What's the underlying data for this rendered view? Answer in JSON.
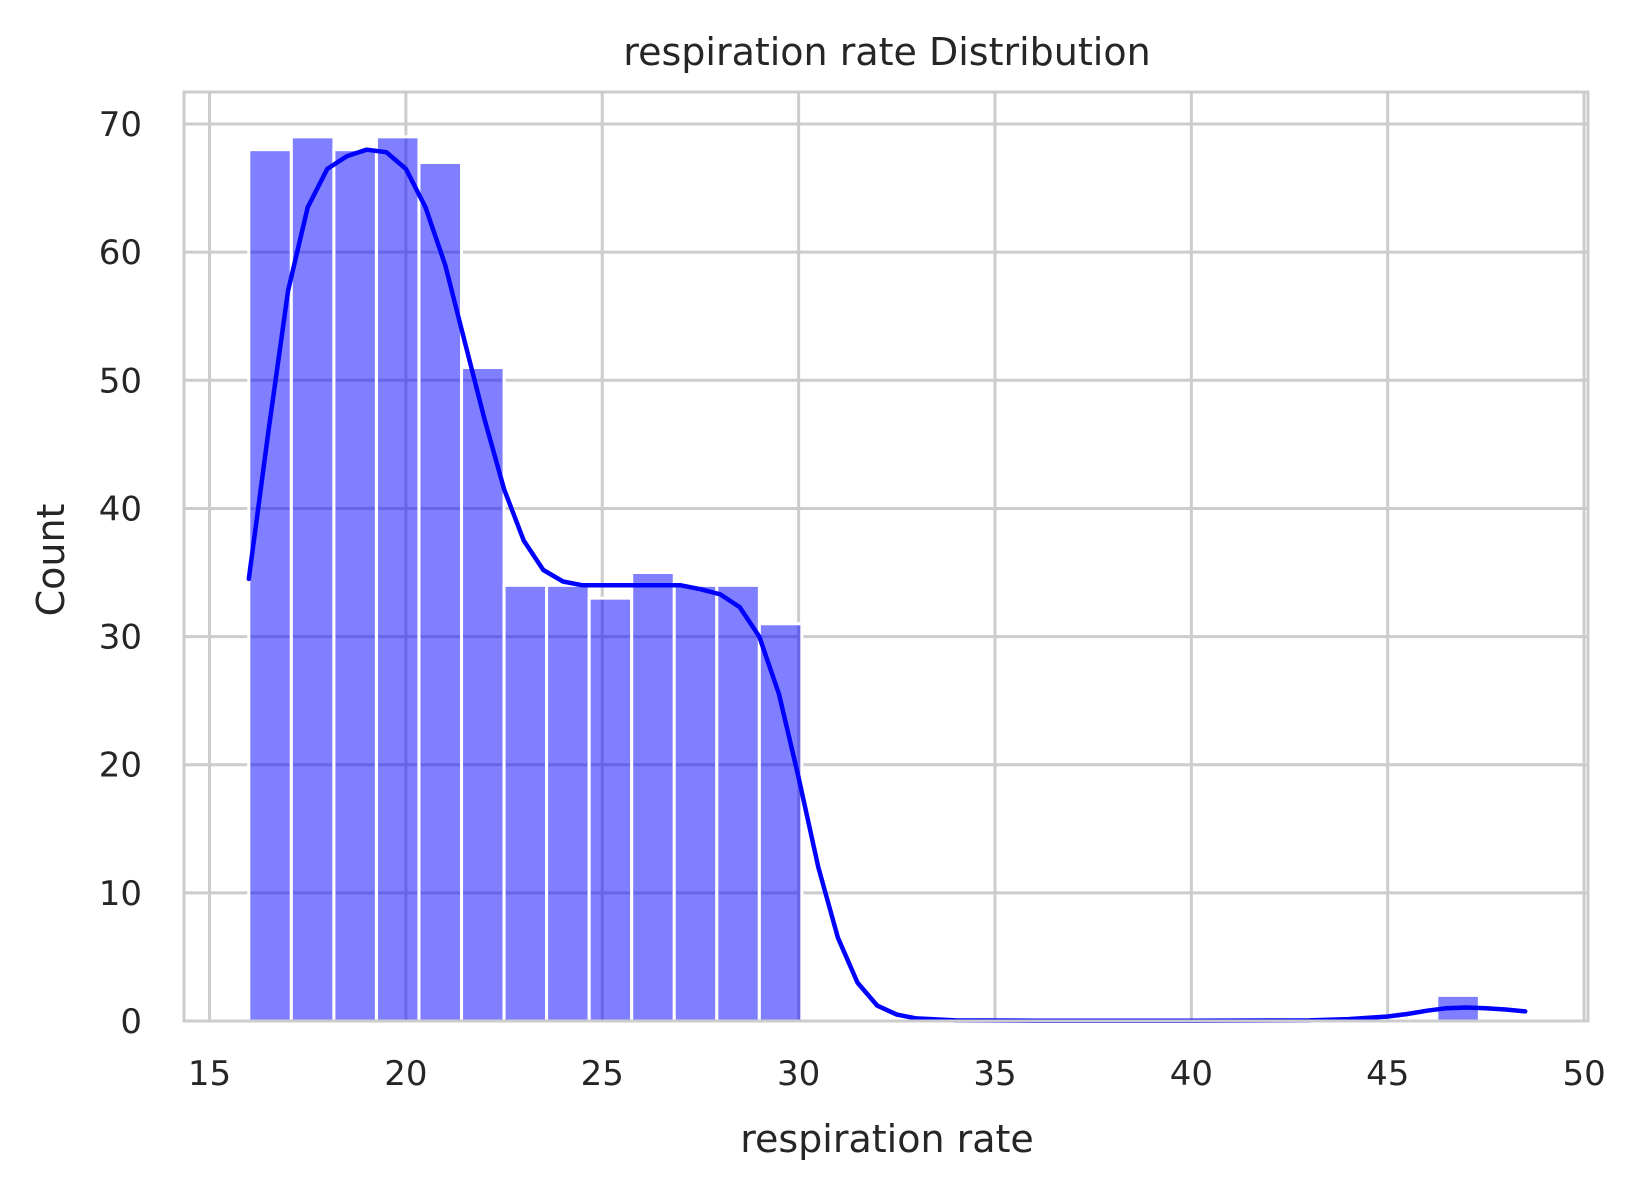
{
  "chart_data": {
    "type": "bar",
    "title": "respiration rate Distribution",
    "xlabel": "respiration rate",
    "ylabel": "Count",
    "xlim": [
      14.35,
      50.1
    ],
    "ylim": [
      0,
      72.5
    ],
    "xticks": [
      15,
      20,
      25,
      30,
      35,
      40,
      45,
      50
    ],
    "yticks": [
      0,
      10,
      20,
      30,
      40,
      50,
      60,
      70
    ],
    "grid": true,
    "bar_color": "#0000ff",
    "bar_opacity": 0.5,
    "bins": [
      {
        "x0": 16.0,
        "x1": 17.083,
        "count": 68
      },
      {
        "x0": 17.083,
        "x1": 18.167,
        "count": 69
      },
      {
        "x0": 18.167,
        "x1": 19.25,
        "count": 68
      },
      {
        "x0": 19.25,
        "x1": 20.333,
        "count": 69
      },
      {
        "x0": 20.333,
        "x1": 21.417,
        "count": 67
      },
      {
        "x0": 21.417,
        "x1": 22.5,
        "count": 51
      },
      {
        "x0": 22.5,
        "x1": 23.583,
        "count": 34
      },
      {
        "x0": 23.583,
        "x1": 24.667,
        "count": 34
      },
      {
        "x0": 24.667,
        "x1": 25.75,
        "count": 33
      },
      {
        "x0": 25.75,
        "x1": 26.833,
        "count": 35
      },
      {
        "x0": 26.833,
        "x1": 27.917,
        "count": 34
      },
      {
        "x0": 27.917,
        "x1": 29.0,
        "count": 34
      },
      {
        "x0": 29.0,
        "x1": 30.083,
        "count": 31
      },
      {
        "x0": 46.25,
        "x1": 47.333,
        "count": 2
      }
    ],
    "kde": {
      "color": "#0000ff",
      "points": [
        [
          16.0,
          34.5
        ],
        [
          16.5,
          46
        ],
        [
          17.0,
          57
        ],
        [
          17.5,
          63.5
        ],
        [
          18.0,
          66.5
        ],
        [
          18.5,
          67.5
        ],
        [
          19.0,
          68
        ],
        [
          19.5,
          67.8
        ],
        [
          20.0,
          66.5
        ],
        [
          20.5,
          63.5
        ],
        [
          21.0,
          59
        ],
        [
          21.5,
          53
        ],
        [
          22.0,
          47
        ],
        [
          22.5,
          41.5
        ],
        [
          23.0,
          37.5
        ],
        [
          23.5,
          35.2
        ],
        [
          24.0,
          34.3
        ],
        [
          24.5,
          34.0
        ],
        [
          25.0,
          34.0
        ],
        [
          25.5,
          34.0
        ],
        [
          26.0,
          34.0
        ],
        [
          26.5,
          34.0
        ],
        [
          27.0,
          34.0
        ],
        [
          27.5,
          33.7
        ],
        [
          28.0,
          33.3
        ],
        [
          28.5,
          32.3
        ],
        [
          29.0,
          30.0
        ],
        [
          29.5,
          25.5
        ],
        [
          30.0,
          19.0
        ],
        [
          30.5,
          12.0
        ],
        [
          31.0,
          6.5
        ],
        [
          31.5,
          3.0
        ],
        [
          32.0,
          1.2
        ],
        [
          32.5,
          0.5
        ],
        [
          33.0,
          0.2
        ],
        [
          34.0,
          0.05
        ],
        [
          36.0,
          0.02
        ],
        [
          40.0,
          0.02
        ],
        [
          43.0,
          0.05
        ],
        [
          44.0,
          0.15
        ],
        [
          45.0,
          0.35
        ],
        [
          45.5,
          0.55
        ],
        [
          46.0,
          0.8
        ],
        [
          46.5,
          1.0
        ],
        [
          47.0,
          1.05
        ],
        [
          47.5,
          1.0
        ],
        [
          48.0,
          0.9
        ],
        [
          48.5,
          0.75
        ]
      ]
    }
  }
}
